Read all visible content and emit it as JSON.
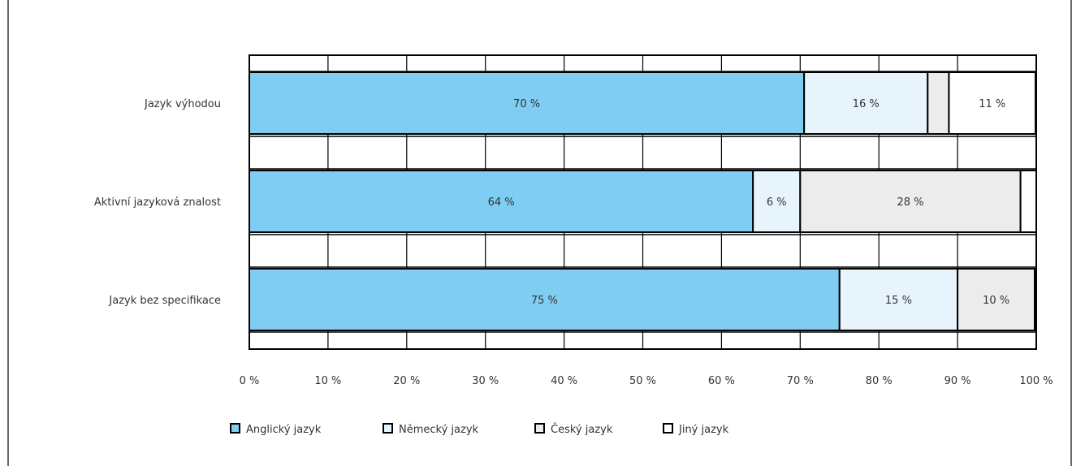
{
  "chart_data": {
    "type": "bar",
    "orientation": "horizontal",
    "stacked": true,
    "categories": [
      "Jazyk výhodou",
      "Aktivní jazyková znalost",
      "Jazyk bez specifikace"
    ],
    "series": [
      {
        "name": "Anglický jazyk",
        "color": "#7fcdf3",
        "values": [
          70.5,
          64,
          75
        ],
        "labels": [
          "70 %",
          "64 %",
          "75 %"
        ]
      },
      {
        "name": "Německý jazyk",
        "color": "#e8f4fc",
        "values": [
          15.7,
          6,
          15
        ],
        "labels": [
          "16 %",
          "6 %",
          "15 %"
        ]
      },
      {
        "name": "Český jazyk",
        "color": "#ececec",
        "values": [
          2.7,
          28,
          9.8
        ],
        "labels": [
          "",
          "28 %",
          "10 %"
        ]
      },
      {
        "name": "Jiný jazyk",
        "color": "#ffffff",
        "values": [
          11,
          2.4,
          0.8
        ],
        "labels": [
          "11 %",
          "",
          ""
        ]
      }
    ],
    "xlim": [
      0,
      100
    ],
    "xticks": [
      0,
      10,
      20,
      30,
      40,
      50,
      60,
      70,
      80,
      90,
      100
    ],
    "xtick_labels": [
      "0 %",
      "10 %",
      "20 %",
      "30 %",
      "40 %",
      "50 %",
      "60 %",
      "70 %",
      "80 %",
      "90 %",
      "100 %"
    ],
    "grid": true,
    "legend_position": "bottom"
  }
}
